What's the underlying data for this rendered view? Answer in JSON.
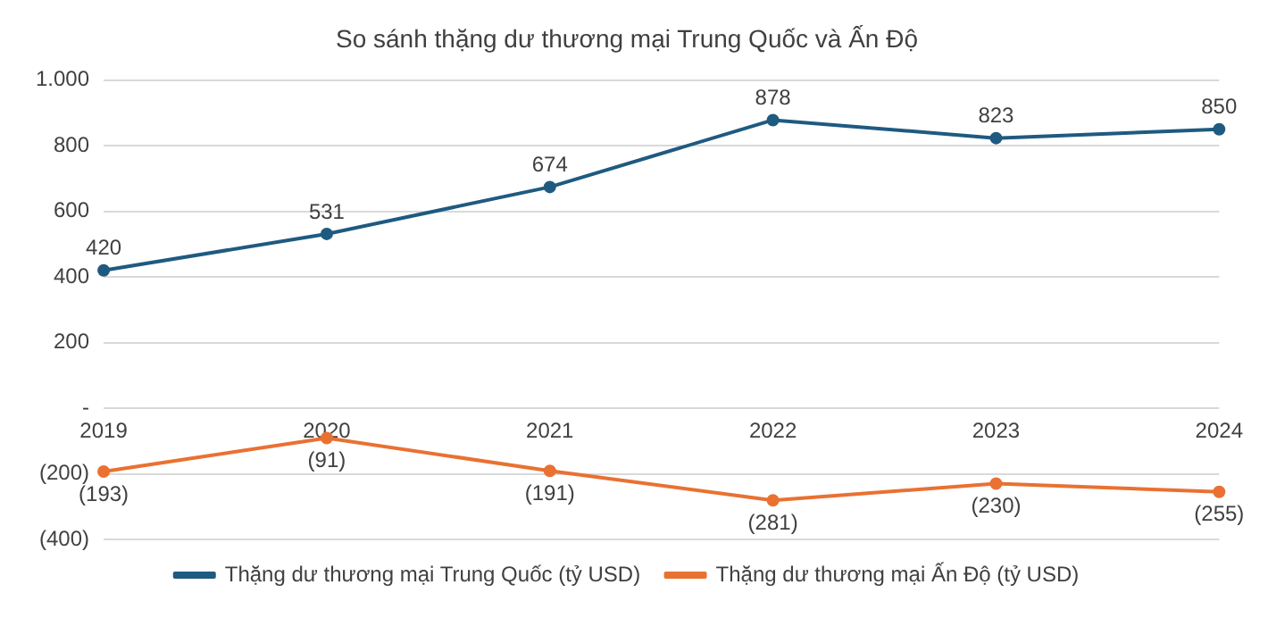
{
  "chart_data": {
    "type": "line",
    "title": "So sánh thặng dư thương mại Trung Quốc và Ấn Độ",
    "categories": [
      "2019",
      "2020",
      "2021",
      "2022",
      "2023",
      "2024"
    ],
    "series": [
      {
        "name": "Thặng dư thương mại Trung Quốc (tỷ USD)",
        "color": "#1f5a80",
        "values": [
          420,
          531,
          674,
          878,
          823,
          850
        ],
        "value_labels": [
          "420",
          "531",
          "674",
          "878",
          "823",
          "850"
        ]
      },
      {
        "name": "Thặng dư thương mại Ấn Độ (tỷ USD)",
        "color": "#e97132",
        "values": [
          -193,
          -91,
          -191,
          -281,
          -230,
          -255
        ],
        "value_labels": [
          "(193)",
          "(91)",
          "(191)",
          "(281)",
          "(230)",
          "(255)"
        ]
      }
    ],
    "ylim": [
      -400,
      1000
    ],
    "yticks": [
      {
        "value": -400,
        "label": "(400)"
      },
      {
        "value": -200,
        "label": "(200)"
      },
      {
        "value": 0,
        "label": "-"
      },
      200,
      400,
      600,
      800,
      {
        "value": 1000,
        "label": "1.000"
      }
    ],
    "grid": "y",
    "legend": "bottom",
    "marker": "circle",
    "line_style": "solid"
  }
}
